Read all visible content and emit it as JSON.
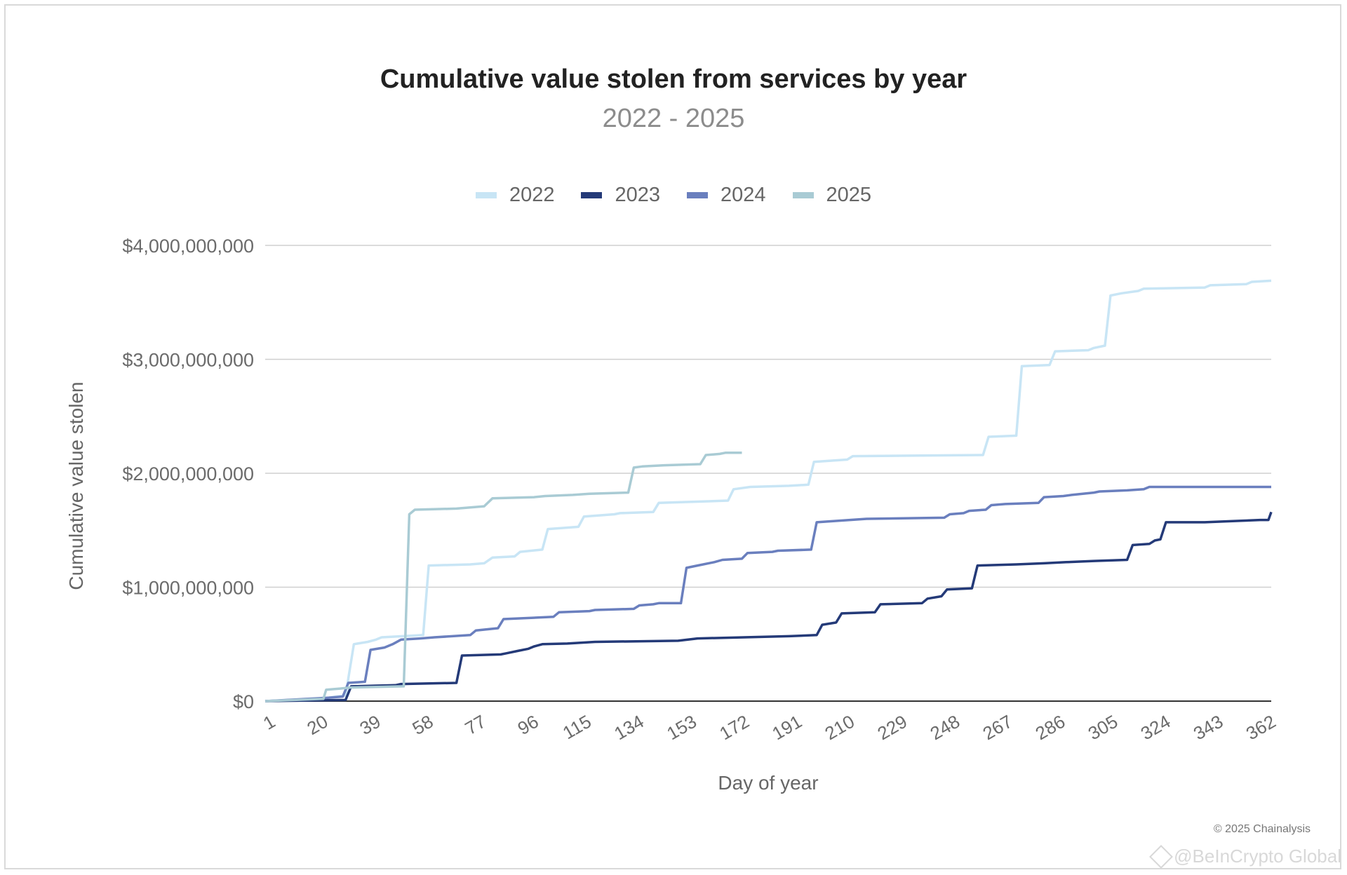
{
  "chart_data": {
    "type": "line",
    "title": "Cumulative value stolen from services by year",
    "subtitle": "2022 - 2025",
    "xlabel": "Day of year",
    "ylabel": "Cumulative value stolen",
    "x_ticks": [
      1,
      20,
      39,
      58,
      77,
      96,
      115,
      134,
      153,
      172,
      191,
      210,
      229,
      248,
      267,
      286,
      305,
      324,
      343,
      362
    ],
    "y_ticks": [
      0,
      1000000000,
      2000000000,
      3000000000,
      4000000000
    ],
    "y_tick_labels": [
      "$0",
      "$1,000,000,000",
      "$2,000,000,000",
      "$3,000,000,000",
      "$4,000,000,000"
    ],
    "xlim": [
      1,
      364
    ],
    "ylim": [
      0,
      4000000000
    ],
    "grid": "horizontal",
    "legend_position": "top-center",
    "series": [
      {
        "name": "2022",
        "color": "#c8e5f5",
        "points": [
          [
            1,
            0
          ],
          [
            10,
            10000000
          ],
          [
            20,
            20000000
          ],
          [
            30,
            50000000
          ],
          [
            33,
            500000000
          ],
          [
            38,
            520000000
          ],
          [
            41,
            540000000
          ],
          [
            43,
            560000000
          ],
          [
            58,
            580000000
          ],
          [
            60,
            1190000000
          ],
          [
            75,
            1200000000
          ],
          [
            80,
            1210000000
          ],
          [
            83,
            1260000000
          ],
          [
            91,
            1270000000
          ],
          [
            93,
            1310000000
          ],
          [
            101,
            1330000000
          ],
          [
            103,
            1510000000
          ],
          [
            114,
            1530000000
          ],
          [
            116,
            1620000000
          ],
          [
            127,
            1640000000
          ],
          [
            129,
            1650000000
          ],
          [
            141,
            1660000000
          ],
          [
            143,
            1740000000
          ],
          [
            168,
            1760000000
          ],
          [
            170,
            1860000000
          ],
          [
            176,
            1880000000
          ],
          [
            190,
            1890000000
          ],
          [
            197,
            1900000000
          ],
          [
            199,
            2100000000
          ],
          [
            211,
            2120000000
          ],
          [
            213,
            2150000000
          ],
          [
            260,
            2160000000
          ],
          [
            262,
            2320000000
          ],
          [
            272,
            2330000000
          ],
          [
            274,
            2940000000
          ],
          [
            284,
            2950000000
          ],
          [
            286,
            3070000000
          ],
          [
            298,
            3080000000
          ],
          [
            300,
            3100000000
          ],
          [
            304,
            3120000000
          ],
          [
            306,
            3560000000
          ],
          [
            310,
            3580000000
          ],
          [
            316,
            3600000000
          ],
          [
            318,
            3620000000
          ],
          [
            340,
            3630000000
          ],
          [
            342,
            3650000000
          ],
          [
            355,
            3660000000
          ],
          [
            357,
            3680000000
          ],
          [
            364,
            3690000000
          ]
        ]
      },
      {
        "name": "2023",
        "color": "#243a78",
        "points": [
          [
            1,
            0
          ],
          [
            30,
            10000000
          ],
          [
            32,
            130000000
          ],
          [
            48,
            140000000
          ],
          [
            50,
            150000000
          ],
          [
            70,
            160000000
          ],
          [
            72,
            400000000
          ],
          [
            86,
            410000000
          ],
          [
            88,
            420000000
          ],
          [
            92,
            440000000
          ],
          [
            96,
            460000000
          ],
          [
            98,
            480000000
          ],
          [
            101,
            500000000
          ],
          [
            110,
            505000000
          ],
          [
            120,
            520000000
          ],
          [
            150,
            530000000
          ],
          [
            157,
            550000000
          ],
          [
            190,
            570000000
          ],
          [
            200,
            580000000
          ],
          [
            202,
            670000000
          ],
          [
            207,
            690000000
          ],
          [
            209,
            770000000
          ],
          [
            221,
            780000000
          ],
          [
            223,
            850000000
          ],
          [
            238,
            860000000
          ],
          [
            240,
            900000000
          ],
          [
            245,
            920000000
          ],
          [
            247,
            980000000
          ],
          [
            256,
            990000000
          ],
          [
            258,
            1190000000
          ],
          [
            272,
            1200000000
          ],
          [
            282,
            1210000000
          ],
          [
            290,
            1220000000
          ],
          [
            300,
            1230000000
          ],
          [
            312,
            1240000000
          ],
          [
            314,
            1370000000
          ],
          [
            320,
            1380000000
          ],
          [
            322,
            1410000000
          ],
          [
            324,
            1420000000
          ],
          [
            326,
            1570000000
          ],
          [
            340,
            1570000000
          ],
          [
            350,
            1580000000
          ],
          [
            360,
            1590000000
          ],
          [
            363,
            1590000000
          ],
          [
            364,
            1660000000
          ]
        ]
      },
      {
        "name": "2024",
        "color": "#6a7fbe",
        "points": [
          [
            1,
            0
          ],
          [
            24,
            30000000
          ],
          [
            29,
            40000000
          ],
          [
            31,
            160000000
          ],
          [
            37,
            170000000
          ],
          [
            39,
            450000000
          ],
          [
            44,
            470000000
          ],
          [
            47,
            500000000
          ],
          [
            50,
            540000000
          ],
          [
            57,
            550000000
          ],
          [
            62,
            560000000
          ],
          [
            75,
            580000000
          ],
          [
            77,
            620000000
          ],
          [
            85,
            640000000
          ],
          [
            87,
            720000000
          ],
          [
            105,
            740000000
          ],
          [
            107,
            780000000
          ],
          [
            118,
            790000000
          ],
          [
            120,
            800000000
          ],
          [
            134,
            810000000
          ],
          [
            136,
            840000000
          ],
          [
            141,
            850000000
          ],
          [
            143,
            860000000
          ],
          [
            151,
            860000000
          ],
          [
            153,
            1170000000
          ],
          [
            157,
            1190000000
          ],
          [
            163,
            1220000000
          ],
          [
            166,
            1240000000
          ],
          [
            173,
            1250000000
          ],
          [
            175,
            1300000000
          ],
          [
            184,
            1310000000
          ],
          [
            186,
            1320000000
          ],
          [
            198,
            1330000000
          ],
          [
            200,
            1570000000
          ],
          [
            206,
            1580000000
          ],
          [
            218,
            1600000000
          ],
          [
            246,
            1610000000
          ],
          [
            248,
            1640000000
          ],
          [
            253,
            1650000000
          ],
          [
            255,
            1670000000
          ],
          [
            261,
            1680000000
          ],
          [
            263,
            1720000000
          ],
          [
            268,
            1730000000
          ],
          [
            280,
            1740000000
          ],
          [
            282,
            1790000000
          ],
          [
            289,
            1800000000
          ],
          [
            292,
            1810000000
          ],
          [
            296,
            1820000000
          ],
          [
            300,
            1830000000
          ],
          [
            302,
            1840000000
          ],
          [
            312,
            1850000000
          ],
          [
            318,
            1860000000
          ],
          [
            320,
            1880000000
          ],
          [
            340,
            1880000000
          ],
          [
            364,
            1880000000
          ]
        ]
      },
      {
        "name": "2025",
        "color": "#a9cbd4",
        "points": [
          [
            1,
            0
          ],
          [
            22,
            20000000
          ],
          [
            23,
            100000000
          ],
          [
            28,
            110000000
          ],
          [
            32,
            120000000
          ],
          [
            51,
            130000000
          ],
          [
            53,
            1640000000
          ],
          [
            55,
            1680000000
          ],
          [
            70,
            1690000000
          ],
          [
            80,
            1710000000
          ],
          [
            83,
            1780000000
          ],
          [
            98,
            1790000000
          ],
          [
            102,
            1800000000
          ],
          [
            112,
            1810000000
          ],
          [
            118,
            1820000000
          ],
          [
            132,
            1830000000
          ],
          [
            134,
            2050000000
          ],
          [
            137,
            2060000000
          ],
          [
            145,
            2070000000
          ],
          [
            158,
            2080000000
          ],
          [
            160,
            2160000000
          ],
          [
            165,
            2170000000
          ],
          [
            167,
            2180000000
          ],
          [
            173,
            2180000000
          ]
        ]
      }
    ]
  },
  "footer": {
    "copyright": "© 2025 Chainalysis",
    "watermark": "@BeInCrypto Global"
  }
}
